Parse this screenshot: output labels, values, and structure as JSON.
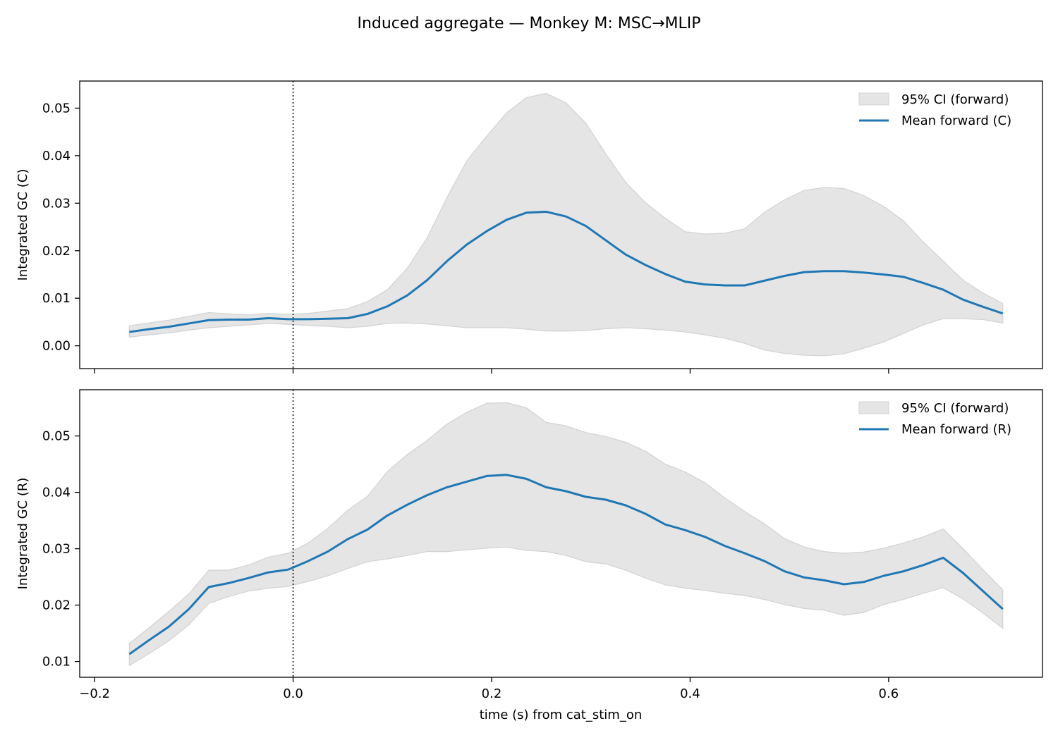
{
  "figure": {
    "title": "Induced aggregate — Monkey M: MSC→MLIP",
    "xlabel": "time (s) from cat_stim_on"
  },
  "colors": {
    "mean_line": "#1f77b4",
    "ci_fill": "#e5e5e5",
    "ci_edge": "#d2d2d2",
    "reference_line": "#000000"
  },
  "chart_data": [
    {
      "type": "line",
      "ylabel": "Integrated GC (C)",
      "xlim": [
        -0.215,
        0.755
      ],
      "ylim": [
        -0.0048,
        0.0557
      ],
      "x_ticks": [
        -0.2,
        0.0,
        0.2,
        0.4,
        0.6
      ],
      "x_tick_labels": [
        "",
        "",
        "",
        "",
        ""
      ],
      "y_ticks": [
        0.0,
        0.01,
        0.02,
        0.03,
        0.04,
        0.05
      ],
      "y_tick_labels": [
        "0.00",
        "0.01",
        "0.02",
        "0.03",
        "0.04",
        "0.05"
      ],
      "reference_x": 0.0,
      "legend_position": "top-right",
      "legend": [
        "95% CI (forward)",
        "Mean forward (C)"
      ],
      "x": [
        -0.165,
        -0.145,
        -0.125,
        -0.105,
        -0.085,
        -0.065,
        -0.045,
        -0.025,
        -0.005,
        0.015,
        0.035,
        0.055,
        0.075,
        0.095,
        0.115,
        0.135,
        0.155,
        0.175,
        0.195,
        0.215,
        0.235,
        0.255,
        0.275,
        0.295,
        0.315,
        0.335,
        0.355,
        0.375,
        0.395,
        0.415,
        0.435,
        0.455,
        0.475,
        0.495,
        0.515,
        0.535,
        0.555,
        0.575,
        0.595,
        0.615,
        0.635,
        0.655,
        0.675,
        0.695,
        0.715
      ],
      "series": [
        {
          "name": "Mean forward (C)",
          "values": [
            0.0029,
            0.0035,
            0.004,
            0.0047,
            0.0054,
            0.0055,
            0.0055,
            0.0058,
            0.0056,
            0.0056,
            0.0057,
            0.0058,
            0.0067,
            0.0083,
            0.0106,
            0.0138,
            0.0178,
            0.0213,
            0.0241,
            0.0265,
            0.028,
            0.0282,
            0.0272,
            0.0252,
            0.0222,
            0.0192,
            0.017,
            0.0151,
            0.0135,
            0.0129,
            0.0127,
            0.0127,
            0.0137,
            0.0147,
            0.0155,
            0.0157,
            0.0157,
            0.0154,
            0.015,
            0.0145,
            0.0132,
            0.0118,
            0.0097,
            0.0082,
            0.0068
          ]
        }
      ],
      "ci_lower": [
        0.0018,
        0.0023,
        0.0027,
        0.0033,
        0.0038,
        0.0041,
        0.0044,
        0.0047,
        0.0045,
        0.0043,
        0.0041,
        0.0038,
        0.0041,
        0.0047,
        0.0048,
        0.0046,
        0.0042,
        0.0038,
        0.0038,
        0.0038,
        0.0035,
        0.0031,
        0.0031,
        0.0032,
        0.0036,
        0.0038,
        0.0036,
        0.0033,
        0.0029,
        0.0023,
        0.0016,
        0.0005,
        -0.0009,
        -0.0016,
        -0.002,
        -0.0021,
        -0.0017,
        -0.0005,
        0.0008,
        0.0026,
        0.0044,
        0.0057,
        0.0057,
        0.0055,
        0.0048
      ],
      "ci_upper": [
        0.0042,
        0.0048,
        0.0054,
        0.0062,
        0.007,
        0.0067,
        0.0065,
        0.0068,
        0.0066,
        0.0068,
        0.0073,
        0.0078,
        0.0093,
        0.0118,
        0.0163,
        0.0227,
        0.0312,
        0.0389,
        0.0441,
        0.049,
        0.0522,
        0.0531,
        0.0511,
        0.0468,
        0.0404,
        0.0344,
        0.0301,
        0.0268,
        0.024,
        0.0235,
        0.0237,
        0.0246,
        0.0281,
        0.0307,
        0.0327,
        0.0333,
        0.0331,
        0.0316,
        0.0293,
        0.0263,
        0.0218,
        0.0178,
        0.0138,
        0.0111,
        0.0089
      ]
    },
    {
      "type": "line",
      "ylabel": "Integrated GC (R)",
      "xlim": [
        -0.215,
        0.755
      ],
      "ylim": [
        0.0072,
        0.0582
      ],
      "x_ticks": [
        -0.2,
        0.0,
        0.2,
        0.4,
        0.6
      ],
      "x_tick_labels": [
        "−0.2",
        "0.0",
        "0.2",
        "0.4",
        "0.6"
      ],
      "y_ticks": [
        0.01,
        0.02,
        0.03,
        0.04,
        0.05
      ],
      "y_tick_labels": [
        "0.01",
        "0.02",
        "0.03",
        "0.04",
        "0.05"
      ],
      "reference_x": 0.0,
      "legend_position": "top-right",
      "legend": [
        "95% CI (forward)",
        "Mean forward (R)"
      ],
      "x": [
        -0.165,
        -0.145,
        -0.125,
        -0.105,
        -0.085,
        -0.065,
        -0.045,
        -0.025,
        -0.005,
        0.015,
        0.035,
        0.055,
        0.075,
        0.095,
        0.115,
        0.135,
        0.155,
        0.175,
        0.195,
        0.215,
        0.235,
        0.255,
        0.275,
        0.295,
        0.315,
        0.335,
        0.355,
        0.375,
        0.395,
        0.415,
        0.435,
        0.455,
        0.475,
        0.495,
        0.515,
        0.535,
        0.555,
        0.575,
        0.595,
        0.615,
        0.635,
        0.655,
        0.675,
        0.695,
        0.715
      ],
      "series": [
        {
          "name": "Mean forward (R)",
          "values": [
            0.0113,
            0.0138,
            0.0162,
            0.0193,
            0.0232,
            0.0239,
            0.0248,
            0.0258,
            0.0263,
            0.0278,
            0.0295,
            0.0317,
            0.0334,
            0.0359,
            0.0378,
            0.0395,
            0.0409,
            0.0419,
            0.0429,
            0.0431,
            0.0424,
            0.0409,
            0.0402,
            0.0392,
            0.0387,
            0.0377,
            0.0362,
            0.0343,
            0.0333,
            0.0321,
            0.0305,
            0.0292,
            0.0278,
            0.026,
            0.0249,
            0.0244,
            0.0237,
            0.0241,
            0.0252,
            0.026,
            0.0271,
            0.0284,
            0.0257,
            0.0225,
            0.0193
          ]
        }
      ],
      "ci_lower": [
        0.0093,
        0.0114,
        0.0137,
        0.0165,
        0.0203,
        0.0215,
        0.0225,
        0.023,
        0.0233,
        0.0242,
        0.0252,
        0.0265,
        0.0277,
        0.0282,
        0.0288,
        0.0295,
        0.0295,
        0.0298,
        0.0301,
        0.0303,
        0.0297,
        0.0295,
        0.0288,
        0.0277,
        0.0273,
        0.0262,
        0.0248,
        0.0236,
        0.023,
        0.0226,
        0.0221,
        0.0217,
        0.021,
        0.0201,
        0.0194,
        0.0191,
        0.0182,
        0.0187,
        0.0201,
        0.021,
        0.0221,
        0.0231,
        0.0211,
        0.0186,
        0.0159
      ],
      "ci_upper": [
        0.0132,
        0.016,
        0.0189,
        0.022,
        0.0262,
        0.0262,
        0.0271,
        0.0285,
        0.0292,
        0.031,
        0.0336,
        0.0368,
        0.0393,
        0.0437,
        0.0467,
        0.0492,
        0.0521,
        0.0542,
        0.0558,
        0.0559,
        0.055,
        0.0524,
        0.0518,
        0.0506,
        0.0499,
        0.0489,
        0.0473,
        0.045,
        0.0436,
        0.0417,
        0.039,
        0.0366,
        0.0344,
        0.0318,
        0.0303,
        0.0295,
        0.0292,
        0.0294,
        0.0301,
        0.031,
        0.0321,
        0.0335,
        0.03,
        0.0263,
        0.0227
      ]
    }
  ]
}
